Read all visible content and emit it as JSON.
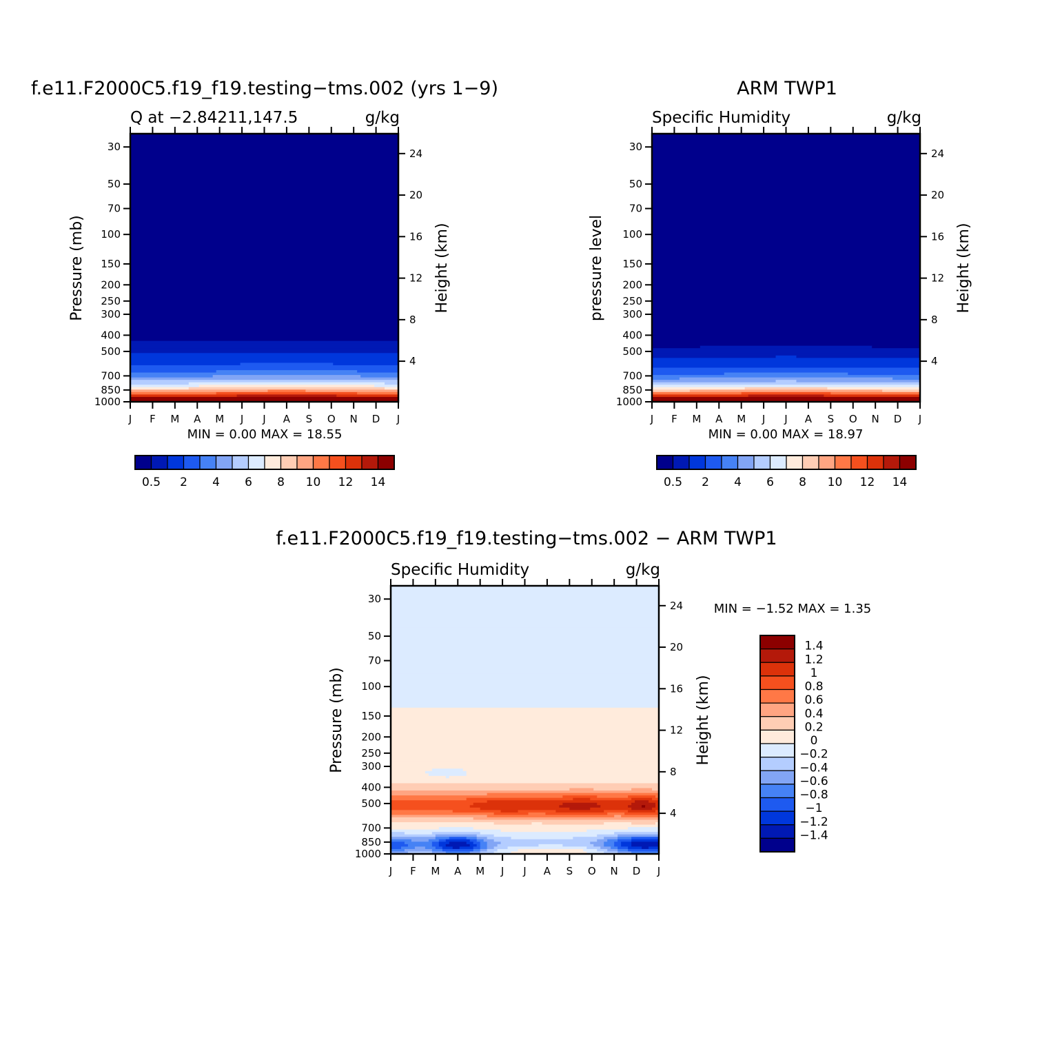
{
  "chart_data": [
    {
      "type": "heatmap",
      "title": "f.e11.F2000C5.f19_f19.testing-tms.002 (yrs 1-9)",
      "subtitle_left": "Q at -2.84211,147.5",
      "subtitle_right": "g/kg",
      "ylabel": "Pressure (mb)",
      "ylabel_right": "Height (km)",
      "x_ticks": [
        "J",
        "F",
        "M",
        "A",
        "M",
        "J",
        "J",
        "A",
        "S",
        "O",
        "N",
        "D",
        "J"
      ],
      "y_ticks": [
        30,
        50,
        70,
        100,
        150,
        200,
        250,
        300,
        400,
        500,
        700,
        850,
        1000
      ],
      "y_ticks_right": [
        24,
        20,
        16,
        12,
        8,
        4
      ],
      "ylim": [
        1000,
        25
      ],
      "stats": {
        "min_label": "MIN =",
        "min": "0.00",
        "max_label": "MAX =",
        "max": "18.55"
      },
      "colorbar": {
        "colors": [
          "#00008c",
          "#0019b4",
          "#0037dc",
          "#1e5af0",
          "#4682f5",
          "#82a5f5",
          "#b4cdff",
          "#dcebff",
          "#ffebdc",
          "#ffcdb4",
          "#ffa582",
          "#ff7846",
          "#f5501e",
          "#dc320a",
          "#b4190a",
          "#8c0000"
        ],
        "labels": [
          "0.5",
          "2",
          "4",
          "6",
          "8",
          "10",
          "12",
          "14"
        ]
      }
    },
    {
      "type": "heatmap",
      "title": "ARM TWP1",
      "subtitle_left": "Specific Humidity",
      "subtitle_right": "g/kg",
      "ylabel": "pressure level",
      "ylabel_right": "Height (km)",
      "x_ticks": [
        "J",
        "F",
        "M",
        "A",
        "M",
        "J",
        "J",
        "A",
        "S",
        "O",
        "N",
        "D",
        "J"
      ],
      "y_ticks": [
        30,
        50,
        70,
        100,
        150,
        200,
        250,
        300,
        400,
        500,
        700,
        850,
        1000
      ],
      "y_ticks_right": [
        24,
        20,
        16,
        12,
        8,
        4
      ],
      "ylim": [
        1000,
        25
      ],
      "stats": {
        "min_label": "MIN =",
        "min": "0.00",
        "max_label": "MAX =",
        "max": "18.97"
      },
      "colorbar": {
        "colors": [
          "#00008c",
          "#0019b4",
          "#0037dc",
          "#1e5af0",
          "#4682f5",
          "#82a5f5",
          "#b4cdff",
          "#dcebff",
          "#ffebdc",
          "#ffcdb4",
          "#ffa582",
          "#ff7846",
          "#f5501e",
          "#dc320a",
          "#b4190a",
          "#8c0000"
        ],
        "labels": [
          "0.5",
          "2",
          "4",
          "6",
          "8",
          "10",
          "12",
          "14"
        ]
      }
    },
    {
      "type": "heatmap",
      "title": "f.e11.F2000C5.f19_f19.testing-tms.002 - ARM TWP1",
      "subtitle_left": "Specific Humidity",
      "subtitle_right": "g/kg",
      "ylabel": "Pressure (mb)",
      "ylabel_right": "Height (km)",
      "x_ticks": [
        "J",
        "F",
        "M",
        "A",
        "M",
        "J",
        "J",
        "A",
        "S",
        "O",
        "N",
        "D",
        "J"
      ],
      "y_ticks": [
        30,
        50,
        70,
        100,
        150,
        200,
        250,
        300,
        400,
        500,
        700,
        850,
        1000
      ],
      "y_ticks_right": [
        24,
        20,
        16,
        12,
        8,
        4
      ],
      "ylim": [
        1000,
        25
      ],
      "stats": {
        "min_label": "MIN =",
        "min": "-1.52",
        "max_label": "MAX =",
        "max": "1.35"
      },
      "colorbar": {
        "colors": [
          "#00008c",
          "#0019b4",
          "#0037dc",
          "#1e5af0",
          "#4682f5",
          "#82a5f5",
          "#b4cdff",
          "#dcebff",
          "#ffebdc",
          "#ffcdb4",
          "#ffa582",
          "#ff7846",
          "#f5501e",
          "#dc320a",
          "#b4190a",
          "#8c0000"
        ],
        "labels": [
          "1.4",
          "1.2",
          "1",
          "0.8",
          "0.6",
          "0.4",
          "0.2",
          "0",
          "-0.2",
          "-0.4",
          "-0.6",
          "-0.8",
          "-1",
          "-1.2",
          "-1.4"
        ]
      }
    }
  ]
}
